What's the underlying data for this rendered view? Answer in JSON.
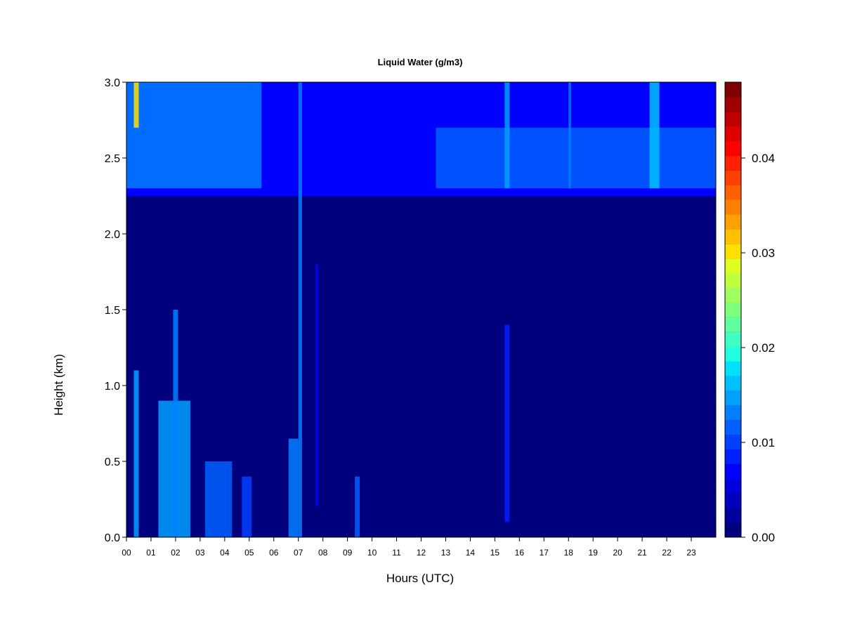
{
  "chart_data": {
    "type": "heatmap",
    "title": "Liquid Water (g/m3)",
    "xlabel": "Hours (UTC)",
    "ylabel": "Height (km)",
    "xlim": [
      0,
      24
    ],
    "ylim": [
      0,
      3
    ],
    "x_tick_labels": [
      "00",
      "01",
      "02",
      "03",
      "04",
      "05",
      "06",
      "07",
      "08",
      "09",
      "10",
      "11",
      "12",
      "13",
      "14",
      "15",
      "16",
      "17",
      "18",
      "19",
      "20",
      "21",
      "22",
      "23"
    ],
    "y_tick_labels": [
      "0.0",
      "0.5",
      "1.0",
      "1.5",
      "2.0",
      "2.5",
      "3.0"
    ],
    "y_ticks": [
      0,
      0.5,
      1.0,
      1.5,
      2.0,
      2.5,
      3.0
    ],
    "colorbar": {
      "range": [
        0,
        0.048
      ],
      "levels": 24,
      "tick_values": [
        0,
        0.01,
        0.02,
        0.03,
        0.04
      ],
      "tick_labels": [
        "0.00",
        "0.01",
        "0.02",
        "0.03",
        "0.04"
      ],
      "colors": [
        "#00007f",
        "#00009f",
        "#0000bf",
        "#0000df",
        "#0000ff",
        "#0020ff",
        "#0040ff",
        "#0060ff",
        "#0080ff",
        "#00a0ff",
        "#00c0ff",
        "#00e0ff",
        "#20ffdf",
        "#40ffbf",
        "#60ff9f",
        "#80ff7f",
        "#9fff60",
        "#bfff40",
        "#dfff20",
        "#ffe000",
        "#ffc000",
        "#ffa000",
        "#ff8000",
        "#ff6000",
        "#ff4000",
        "#ff2000",
        "#ff0000",
        "#df0000",
        "#bf0000",
        "#9f0000",
        "#7f0000"
      ]
    },
    "background_value": 0.0,
    "upper_layer": {
      "height_range_km": [
        2.25,
        3.0
      ],
      "typical_value": 0.006
    },
    "features": [
      {
        "hour_range": [
          0.0,
          5.5
        ],
        "height_range_km": [
          2.3,
          3.0
        ],
        "value": 0.012
      },
      {
        "hour_range": [
          12.6,
          24.0
        ],
        "height_range_km": [
          2.3,
          2.7
        ],
        "value": 0.011
      },
      {
        "hour_range": [
          0.3,
          0.5
        ],
        "height_range_km": [
          2.7,
          3.0
        ],
        "value": 0.03
      },
      {
        "hour_range": [
          0.3,
          0.5
        ],
        "height_range_km": [
          0.0,
          1.1
        ],
        "value": 0.014
      },
      {
        "hour_range": [
          1.3,
          2.6
        ],
        "height_range_km": [
          0.0,
          0.9
        ],
        "value": 0.014
      },
      {
        "hour_range": [
          1.9,
          2.1
        ],
        "height_range_km": [
          0.0,
          1.5
        ],
        "value": 0.012
      },
      {
        "hour_range": [
          3.2,
          4.3
        ],
        "height_range_km": [
          0.0,
          0.5
        ],
        "value": 0.011
      },
      {
        "hour_range": [
          4.7,
          5.1
        ],
        "height_range_km": [
          0.0,
          0.4
        ],
        "value": 0.009
      },
      {
        "hour_range": [
          6.6,
          7.0
        ],
        "height_range_km": [
          0.0,
          0.65
        ],
        "value": 0.013
      },
      {
        "hour_range": [
          7.0,
          7.15
        ],
        "height_range_km": [
          0.0,
          3.0
        ],
        "value": 0.013
      },
      {
        "hour_range": [
          7.7,
          7.8
        ],
        "height_range_km": [
          0.2,
          1.8
        ],
        "value": 0.007
      },
      {
        "hour_range": [
          9.3,
          9.5
        ],
        "height_range_km": [
          0.0,
          0.4
        ],
        "value": 0.011
      },
      {
        "hour_range": [
          15.4,
          15.6
        ],
        "height_range_km": [
          0.1,
          1.4
        ],
        "value": 0.008
      },
      {
        "hour_range": [
          15.4,
          15.6
        ],
        "height_range_km": [
          2.3,
          3.0
        ],
        "value": 0.014
      },
      {
        "hour_range": [
          21.3,
          21.7
        ],
        "height_range_km": [
          2.3,
          3.0
        ],
        "value": 0.016
      },
      {
        "hour_range": [
          18.0,
          18.1
        ],
        "height_range_km": [
          2.3,
          3.0
        ],
        "value": 0.012
      }
    ]
  }
}
